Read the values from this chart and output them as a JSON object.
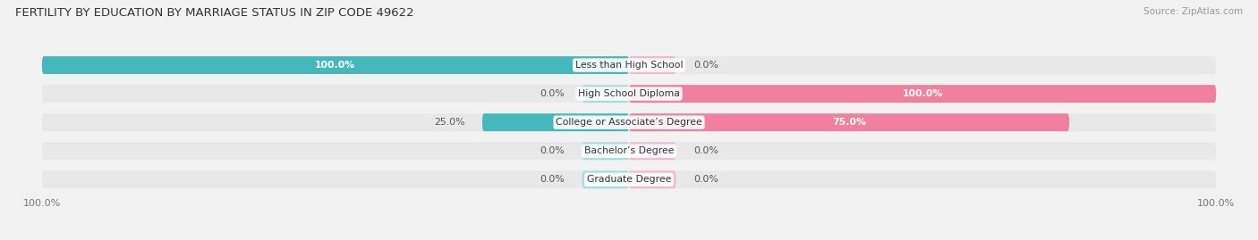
{
  "title": "FERTILITY BY EDUCATION BY MARRIAGE STATUS IN ZIP CODE 49622",
  "source": "Source: ZipAtlas.com",
  "categories": [
    "Less than High School",
    "High School Diploma",
    "College or Associate’s Degree",
    "Bachelor’s Degree",
    "Graduate Degree"
  ],
  "married": [
    100.0,
    0.0,
    25.0,
    0.0,
    0.0
  ],
  "unmarried": [
    0.0,
    100.0,
    75.0,
    0.0,
    0.0
  ],
  "married_color": "#45b8bd",
  "unmarried_color": "#f07fa0",
  "bg_row_color": "#e8e8e8",
  "bar_height": 0.62,
  "figsize": [
    14.06,
    2.69
  ],
  "dpi": 100,
  "label_fontsize": 7.8,
  "cat_fontsize": 7.8,
  "title_fontsize": 9.5,
  "source_fontsize": 7.5
}
